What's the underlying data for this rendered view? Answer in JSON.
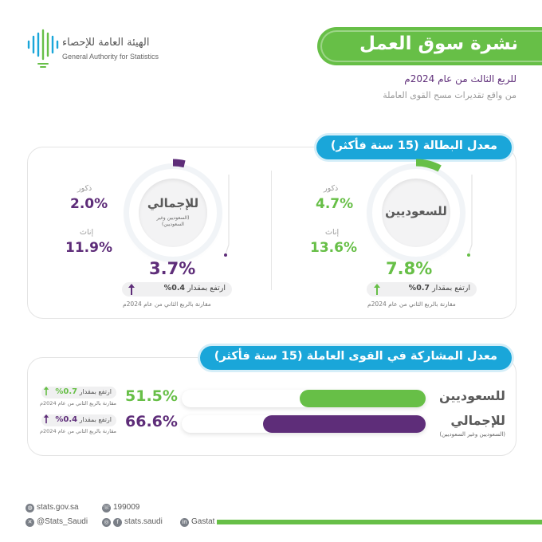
{
  "header": {
    "logo_ar": "الهيئة العامة للإحصاء",
    "logo_en": "General Authority for Statistics",
    "title": "نشرة سوق العمل",
    "subtitle": "للربع الثالث من عام 2024م",
    "subtitle2": "من واقع تقديرات مسح القوى العاملة"
  },
  "unemployment": {
    "section_title": "معدل البطالة (15 سنة فأكثر)",
    "saudis": {
      "ring_label": "للسعوديين",
      "male_label": "ذكور",
      "male_value": "4.7%",
      "female_label": "إناث",
      "female_value": "13.6%",
      "total_value": "7.8%",
      "total_fraction": 0.078,
      "change_text": "ارتفع بمقدار",
      "change_value": "0.7%",
      "compare_note": "مقارنة بالربع الثاني من عام 2024م",
      "color": "#67bf47"
    },
    "overall": {
      "ring_label": "للإجمالي",
      "ring_sub": "(السعوديين وغير السعوديين)",
      "male_label": "ذكور",
      "male_value": "2.0%",
      "female_label": "إناث",
      "female_value": "11.9%",
      "total_value": "3.7%",
      "total_fraction": 0.037,
      "change_text": "ارتفع بمقدار",
      "change_value": "0.4%",
      "compare_note": "مقارنة بالربع الثاني من عام 2024م",
      "color": "#5e2d79"
    }
  },
  "participation": {
    "section_title": "معدل المشاركة في القوى العاملة (15 سنة فأكثر)",
    "rows": [
      {
        "label": "للسعوديين",
        "sub": "",
        "value": "51.5%",
        "fraction": 0.515,
        "change_text": "ارتفع بمقدار",
        "change_value": "0.7%",
        "compare_note": "مقارنة بالربع الثاني من عام 2024م",
        "color": "#67bf47"
      },
      {
        "label": "للإجمالي",
        "sub": "(السعوديين وغير السعوديين)",
        "value": "66.6%",
        "fraction": 0.666,
        "change_text": "ارتفع بمقدار",
        "change_value": "0.4%",
        "compare_note": "مقارنة بالربع الثاني من عام 2024م",
        "color": "#5e2d79"
      }
    ]
  },
  "footer": {
    "website": "stats.gov.sa",
    "phone": "199009",
    "twitter": "@Stats_Saudi",
    "social": "stats.saudi",
    "linkedin": "Gastat"
  },
  "colors": {
    "green": "#67bf47",
    "purple": "#5e2d79",
    "blue": "#1aa6d9"
  }
}
